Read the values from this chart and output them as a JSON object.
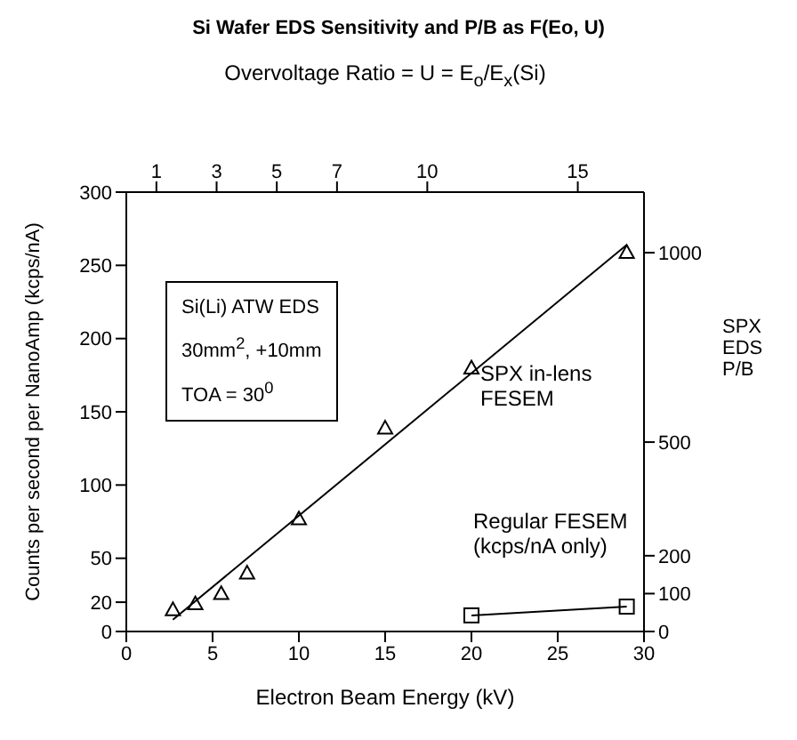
{
  "chart_data": {
    "type": "scatter",
    "title": "Si Wafer EDS Sensitivity and P/B as F(Eo, U)",
    "xlabel": "Electron Beam Energy (kV)",
    "ylabel": "Counts per second per NanoAmp (kcps/nA)",
    "y2label": "SPX EDS P/B",
    "x2label": "Overvoltage Ratio = U = E$_{o}$/E$_{x}$(Si)",
    "xlim": [
      0,
      30
    ],
    "xticks": [
      0,
      5,
      10,
      15,
      20,
      25,
      30
    ],
    "x2lim": [
      0,
      17.2
    ],
    "x2ticks": [
      1,
      3,
      5,
      7,
      10,
      15
    ],
    "ylim": [
      0,
      300
    ],
    "yticks": [
      0,
      20,
      50,
      100,
      150,
      200,
      250,
      300
    ],
    "y2lim": [
      0,
      1160
    ],
    "y2ticks": [
      0,
      100,
      200,
      500,
      1000
    ],
    "grid": false,
    "legend": false,
    "series": [
      {
        "type": "scatter",
        "marker": "triangle",
        "color": "#000000",
        "x": [
          2.7,
          4,
          5.5,
          7,
          10,
          15,
          20,
          29
        ],
        "values": [
          15,
          19,
          26,
          40,
          77,
          139,
          180,
          259
        ]
      },
      {
        "type": "line",
        "marker": "none",
        "color": "#000000",
        "x": [
          2.7,
          29
        ],
        "values": [
          8,
          264
        ]
      },
      {
        "type": "line",
        "marker": "square",
        "color": "#000000",
        "x": [
          20,
          29
        ],
        "values": [
          11,
          17
        ]
      }
    ],
    "annotations": [
      "Si(Li) ATW EDS",
      "30mm$^{2}$, +10mm",
      "TOA = 30$^{0}$",
      "SPX in-lens FESEM",
      "Regular FESEM (kcps/nA only)"
    ]
  }
}
